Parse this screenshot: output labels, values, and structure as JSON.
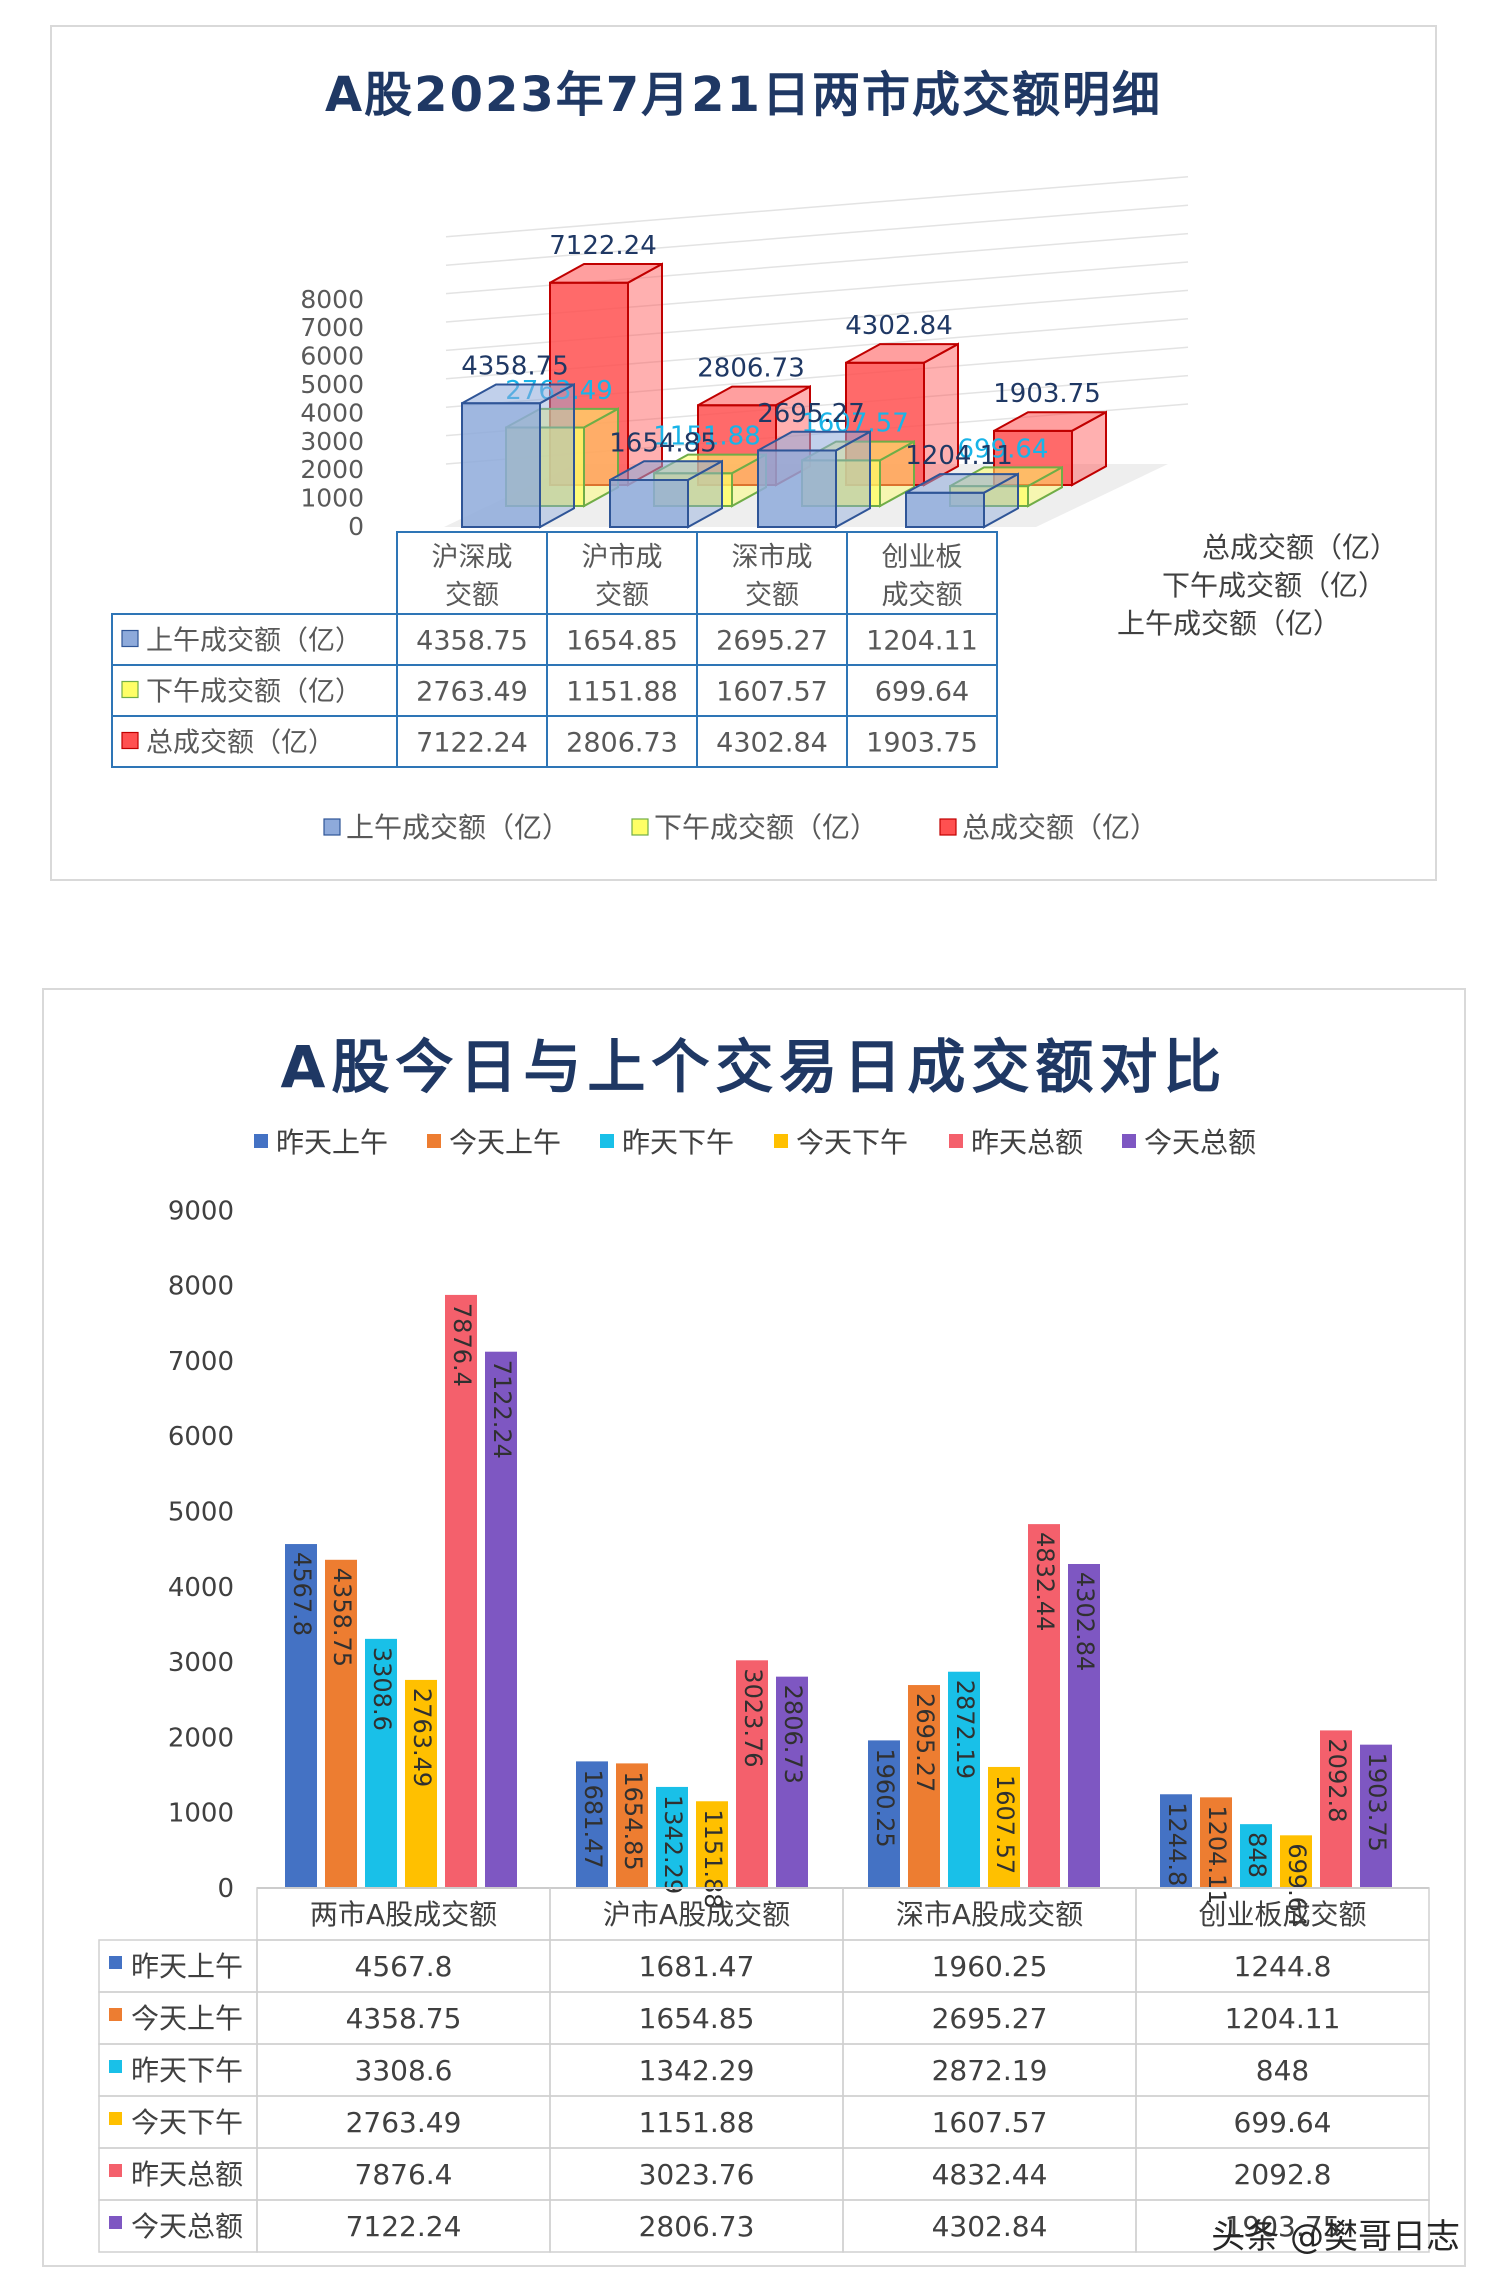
{
  "chart_data": [
    {
      "type": "bar",
      "title": "A股2023年7月21日两市成交额明细",
      "categories": [
        [
          "沪深成",
          "交额"
        ],
        [
          "沪市成",
          "交额"
        ],
        [
          "深市成",
          "交额"
        ],
        [
          "创业板",
          "成交额"
        ]
      ],
      "series": [
        {
          "name": "上午成交额（亿）",
          "values": [
            4358.75,
            1654.85,
            2695.27,
            1204.11
          ],
          "color": "#8eaadb",
          "stroke": "#2f5597"
        },
        {
          "name": "下午成交额（亿）",
          "values": [
            2763.49,
            1151.88,
            1607.57,
            699.64
          ],
          "color": "#ffff66",
          "stroke": "#70ad47"
        },
        {
          "name": "总成交额（亿）",
          "values": [
            7122.24,
            2806.73,
            4302.84,
            1903.75
          ],
          "color": "#ff5050",
          "stroke": "#c00000"
        }
      ],
      "ylim": [
        0,
        8000
      ],
      "yticks": [
        "0",
        "1000",
        "2000",
        "3000",
        "4000",
        "5000",
        "6000",
        "7000",
        "8000"
      ],
      "data_labels": [
        [
          "4358.75",
          "1654.85",
          "2695.27",
          "1204.11"
        ],
        [
          "2763.49",
          "1151.88",
          "1607.57",
          "699.64"
        ],
        [
          "7122.24",
          "2806.73",
          "4302.84",
          "1903.75"
        ]
      ],
      "legend_position": "bottom",
      "data_table": true
    },
    {
      "type": "bar",
      "title": "A股今日与上个交易日成交额对比",
      "categories": [
        "两市A股成交额",
        "沪市A股成交额",
        "深市A股成交额",
        "创业板成交额"
      ],
      "series": [
        {
          "name": "昨天上午",
          "values": [
            4567.8,
            1681.47,
            1960.25,
            1244.8
          ],
          "color": "#4472c4"
        },
        {
          "name": "今天上午",
          "values": [
            4358.75,
            1654.85,
            2695.27,
            1204.11
          ],
          "color": "#ed7d31"
        },
        {
          "name": "昨天下午",
          "values": [
            3308.6,
            1342.29,
            2872.19,
            848
          ],
          "color": "#19c0e8"
        },
        {
          "name": "今天下午",
          "values": [
            2763.49,
            1151.88,
            1607.57,
            699.64
          ],
          "color": "#ffc000"
        },
        {
          "name": "昨天总额",
          "values": [
            7876.4,
            3023.76,
            4832.44,
            2092.8
          ],
          "color": "#f4606c"
        },
        {
          "name": "今天总额",
          "values": [
            7122.24,
            2806.73,
            4302.84,
            1903.75
          ],
          "color": "#7e57c2"
        }
      ],
      "labels": [
        [
          "4567.8",
          "1681.47",
          "1960.25",
          "1244.8"
        ],
        [
          "4358.75",
          "1654.85",
          "2695.27",
          "1204.11"
        ],
        [
          "3308.6",
          "1342.29",
          "2872.19",
          "848"
        ],
        [
          "2763.49",
          "1151.88",
          "1607.57",
          "699.64"
        ],
        [
          "7876.4",
          "3023.76",
          "4832.44",
          "2092.8"
        ],
        [
          "7122.24",
          "2806.73",
          "4302.84",
          "1903.75"
        ]
      ],
      "ylim": [
        0,
        9000
      ],
      "yticks": [
        "0",
        "1000",
        "2000",
        "3000",
        "4000",
        "5000",
        "6000",
        "7000",
        "8000",
        "9000"
      ],
      "legend_position": "top",
      "data_table": true
    }
  ],
  "watermark": "头条 @樊哥日志"
}
